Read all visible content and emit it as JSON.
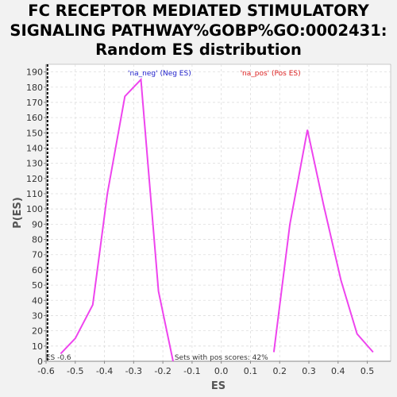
{
  "chart_data": {
    "type": "line",
    "title": [
      "FC RECEPTOR MEDIATED STIMULATORY",
      "SIGNALING PATHWAY%GOBP%GO:0002431:",
      "Random ES distribution"
    ],
    "xlabel": "ES",
    "ylabel": "P(ES)",
    "xlim": [
      -0.6,
      0.58
    ],
    "ylim": [
      0,
      195
    ],
    "x_ticks": [
      -0.6,
      -0.5,
      -0.4,
      -0.3,
      -0.2,
      -0.1,
      0.0,
      0.1,
      0.2,
      0.3,
      0.4,
      0.5
    ],
    "x_tick_labels": [
      "-0.6",
      "-0.5",
      "-0.4",
      "-0.3",
      "-0.2",
      "-0.1",
      "0.0",
      "0.1",
      "0.2",
      "0.3",
      "0.4",
      "0.5"
    ],
    "y_ticks": [
      0,
      10,
      20,
      30,
      40,
      50,
      60,
      70,
      80,
      90,
      100,
      110,
      120,
      130,
      140,
      150,
      160,
      170,
      180,
      190
    ],
    "grid": true,
    "series": [
      {
        "name": "'na_neg' (Neg ES)",
        "color": "#ee44ee",
        "x": [
          -0.55,
          -0.5,
          -0.44,
          -0.39,
          -0.33,
          -0.275,
          -0.215,
          -0.165
        ],
        "y": [
          5,
          15,
          37,
          110,
          174,
          185,
          46,
          0
        ]
      },
      {
        "name": "'na_pos' (Pos ES)",
        "color": "#ee44ee",
        "x": [
          0.18,
          0.235,
          0.295,
          0.35,
          0.41,
          0.465,
          0.52
        ],
        "y": [
          6,
          90,
          152,
          103,
          53,
          18,
          6
        ]
      }
    ],
    "legend": [
      {
        "label": "'na_neg' (Neg ES)",
        "color": "#2222cc"
      },
      {
        "label": "'na_pos' (Pos ES)",
        "color": "#dd2222"
      }
    ],
    "annotations": {
      "es_marker_label": "ES -0.6",
      "es_marker_x": -0.595,
      "pos_scores_text": "Sets with pos scores: 42%"
    }
  }
}
